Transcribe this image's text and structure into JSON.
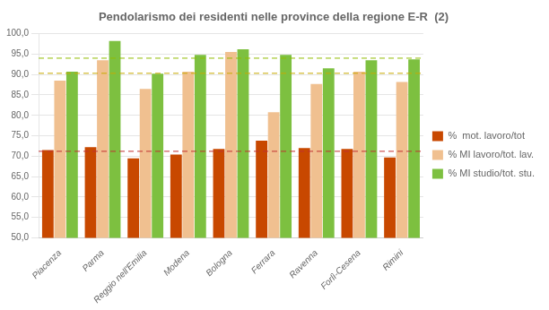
{
  "chart_data": {
    "type": "bar",
    "title": "Pendolarismo dei residenti nelle province della regione E-R  (2)",
    "categories": [
      "Piacenza",
      "Parma",
      "Reggio nell'Emilia",
      "Modena",
      "Bologna",
      "Ferrara",
      "Ravenna",
      "Forlì-Cesena",
      "Rimini"
    ],
    "series": [
      {
        "name": "%  mot. lavoro/tot",
        "color": "#C84800",
        "values": [
          71.5,
          72.2,
          69.5,
          70.4,
          71.8,
          73.8,
          72.0,
          71.8,
          69.7
        ]
      },
      {
        "name": "% MI lavoro/tot. lav.",
        "color": "#F0C090",
        "values": [
          88.5,
          93.5,
          86.5,
          90.7,
          95.5,
          80.8,
          87.7,
          90.7,
          88.2
        ]
      },
      {
        "name": "% MI studio/tot. stu.",
        "color": "#7DC040",
        "values": [
          90.7,
          98.2,
          90.2,
          94.8,
          96.2,
          94.8,
          91.5,
          93.5,
          93.7
        ]
      }
    ],
    "ref_lines": [
      {
        "value": 94.0,
        "color": "#90BC00",
        "line_style": "dashed"
      },
      {
        "value": 90.3,
        "color": "#C8AA00",
        "line_style": "dashed"
      },
      {
        "value": 71.2,
        "color": "#C03030",
        "line_style": "dashed"
      }
    ],
    "ylim": [
      50,
      100
    ],
    "yticks": [
      {
        "value": 50.0,
        "label": "50,0"
      },
      {
        "value": 55.0,
        "label": "55,0"
      },
      {
        "value": 60.0,
        "label": "60,0"
      },
      {
        "value": 65.0,
        "label": "65,0"
      },
      {
        "value": 70.0,
        "label": "70,0"
      },
      {
        "value": 75.0,
        "label": "75,0"
      },
      {
        "value": 80.0,
        "label": "80,0"
      },
      {
        "value": 85.0,
        "label": "85,0"
      },
      {
        "value": 90.0,
        "label": "90,0"
      },
      {
        "value": 95.0,
        "label": "95,0"
      },
      {
        "value": 100.0,
        "label": "100,0"
      }
    ],
    "grid": true,
    "legend": "right"
  }
}
